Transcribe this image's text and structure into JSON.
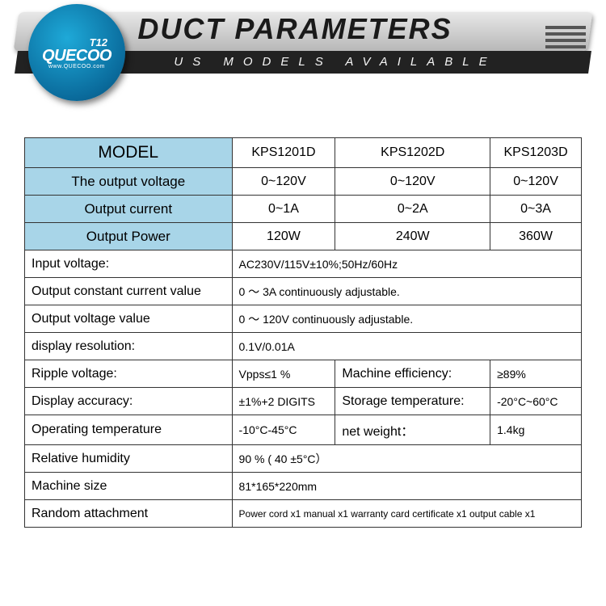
{
  "header": {
    "title": "DUCT PARAMETERS",
    "subtitle": "US MODELS AVAILABLE"
  },
  "logo": {
    "t12": "T12",
    "brand": "QUECOO",
    "url": "www.QUECOO.com"
  },
  "colors": {
    "header_blue": "#a8d5e8",
    "badge_light": "#1ea9d8",
    "badge_dark": "#074e73",
    "border": "#333333"
  },
  "model_table": {
    "header_label": "MODEL",
    "columns": [
      "KPS1201D",
      "KPS1202D",
      "KPS1203D"
    ],
    "rows": [
      {
        "label": "The output voltage",
        "vals": [
          "0~120V",
          "0~120V",
          "0~120V"
        ]
      },
      {
        "label": "Output current",
        "vals": [
          "0~1A",
          "0~2A",
          "0~3A"
        ]
      },
      {
        "label": "Output Power",
        "vals": [
          "120W",
          "240W",
          "360W"
        ]
      }
    ]
  },
  "specs_full": [
    {
      "k": "Input voltage:",
      "v": "AC230V/115V±10%;50Hz/60Hz"
    },
    {
      "k": "Output constant current value",
      "v": "0 ～ 3A continuously adjustable."
    },
    {
      "k": "Output voltage value",
      "v": "0 ～ 120V continuously adjustable."
    },
    {
      "k": "display resolution:",
      "v": "0.1V/0.01A"
    }
  ],
  "specs_pair": [
    {
      "k1": "Ripple voltage:",
      "v1": "Vpps≤1 %",
      "k2": "Machine efficiency:",
      "v2": "≥89%"
    },
    {
      "k1": "Display accuracy:",
      "v1": "±1%+2 DIGITS",
      "k2": "Storage temperature:",
      "v2": "-20°C~60°C"
    },
    {
      "k1": "Operating temperature",
      "v1": "-10°C-45°C",
      "k2": "net weight：",
      "v2": "1.4kg"
    }
  ],
  "specs_tail": [
    {
      "k": "Relative humidity",
      "v": "90 % ( 40 ±5°C）"
    },
    {
      "k": "Machine size",
      "v": "81*165*220mm"
    },
    {
      "k": "Random attachment",
      "v": "Power cord x1 manual x1 warranty card certificate x1 output cable x1"
    }
  ]
}
